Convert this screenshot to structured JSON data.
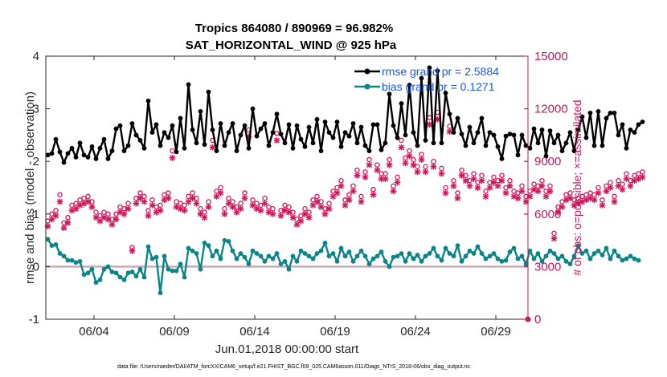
{
  "chart_data": {
    "type": "line",
    "title": "Tropics 864080 / 890969 = 96.982%",
    "subtitle": "SAT_HORIZONTAL_WIND @ 925 hPa",
    "xlabel": "Jun.01,2018 00:00:00 start",
    "ylabel": "rmse and bias (model - observation)",
    "y2label": "# of obs: o=possible; ×=assimilated",
    "ylim": [
      -1,
      4
    ],
    "y2lim": [
      0,
      15000
    ],
    "xlim": [
      1.0,
      31.0
    ],
    "x_ticks": [
      4,
      9,
      14,
      19,
      24,
      29
    ],
    "x_tick_labels": [
      "06/04",
      "06/09",
      "06/14",
      "06/19",
      "06/24",
      "06/29"
    ],
    "y_ticks": [
      "-1",
      "0",
      "1",
      "2",
      "3",
      "4"
    ],
    "y2_ticks": [
      "0",
      "3000",
      "6000",
      "9000",
      "12000",
      "15000"
    ],
    "footnote": "data file: /Users/raeder/DAI/ATM_forcXX/CAM6_setup/f.e21.FHIST_BGC.f09_025.CAM6assim.011/Diags_NTrS_2018-06/obs_diag_output.nc",
    "colors": {
      "rmse": "#000000",
      "bias": "#0b8585",
      "obs": "#d4145a",
      "zero_line": "#c9a9b9",
      "legend_text": "#1a56e8",
      "right_axis": "#c2185b"
    },
    "series": [
      {
        "name": "rmse grand pr = 2.5884",
        "axis": "left",
        "x_start": 1.125,
        "x_step": 0.25,
        "values": [
          2.12,
          2.15,
          2.42,
          2.18,
          1.98,
          2.15,
          2.25,
          2.08,
          2.35,
          2.12,
          2.08,
          2.28,
          2.05,
          2.25,
          2.42,
          2.05,
          2.2,
          2.62,
          2.68,
          2.2,
          2.3,
          2.72,
          2.5,
          2.4,
          2.25,
          3.15,
          2.55,
          2.7,
          2.3,
          2.55,
          2.45,
          2.68,
          2.18,
          2.82,
          2.25,
          3.46,
          2.6,
          2.35,
          2.95,
          2.32,
          3.32,
          2.6,
          2.2,
          2.72,
          2.3,
          2.55,
          2.72,
          2.2,
          2.5,
          2.68,
          2.25,
          3.0,
          2.48,
          2.62,
          2.72,
          2.3,
          2.55,
          2.9,
          2.52,
          2.35,
          2.7,
          2.25,
          2.68,
          2.42,
          2.28,
          2.65,
          2.35,
          2.8,
          2.2,
          2.75,
          2.55,
          2.45,
          2.75,
          2.28,
          2.55,
          2.48,
          2.72,
          2.35,
          2.65,
          2.3,
          2.2,
          2.7,
          2.7,
          2.22,
          2.35,
          3.28,
          2.68,
          2.45,
          3.1,
          2.5,
          3.45,
          2.55,
          2.3,
          3.58,
          2.4,
          3.78,
          2.35,
          3.72,
          2.35,
          3.3,
          2.9,
          2.55,
          2.82,
          2.52,
          2.3,
          2.65,
          2.35,
          2.55,
          2.82,
          2.3,
          2.55,
          2.5,
          2.28,
          2.05,
          2.48,
          2.52,
          2.5,
          2.12,
          2.5,
          2.3,
          2.25,
          2.62,
          2.35,
          2.6,
          2.1,
          2.58,
          2.35,
          2.5,
          2.2,
          2.35,
          2.55,
          2.2,
          2.6,
          2.85,
          2.45,
          2.92,
          2.3,
          2.95,
          2.3,
          2.82,
          2.92,
          2.92,
          2.5,
          2.7,
          2.25,
          2.6,
          2.55,
          2.7,
          2.75
        ]
      },
      {
        "name": "bias grand pr = 0.1271",
        "axis": "left",
        "x_start": 1.125,
        "x_step": 0.25,
        "values": [
          0.52,
          0.4,
          0.42,
          0.25,
          0.2,
          0.12,
          0.12,
          0.08,
          0.1,
          -0.15,
          -0.12,
          -0.05,
          -0.3,
          -0.25,
          -0.05,
          0.0,
          -0.1,
          -0.12,
          -0.2,
          -0.25,
          -0.12,
          -0.1,
          -0.18,
          -0.05,
          -0.2,
          0.38,
          0.15,
          0.18,
          -0.5,
          0.2,
          -0.05,
          -0.08,
          -0.08,
          0.05,
          -0.2,
          0.35,
          0.3,
          0.25,
          -0.05,
          0.45,
          0.4,
          0.2,
          0.3,
          0.15,
          0.5,
          0.48,
          0.3,
          0.15,
          0.25,
          0.18,
          0.05,
          0.3,
          0.25,
          0.2,
          0.1,
          0.2,
          0.15,
          0.25,
          0.05,
          0.1,
          -0.05,
          0.2,
          0.1,
          0.3,
          0.25,
          0.2,
          0.15,
          0.25,
          0.3,
          0.45,
          0.2,
          0.25,
          0.1,
          0.35,
          0.2,
          0.28,
          0.1,
          0.2,
          0.3,
          0.2,
          0.05,
          0.15,
          0.2,
          0.28,
          0.1,
          0.0,
          0.18,
          0.2,
          0.25,
          0.1,
          0.25,
          0.15,
          0.22,
          0.1,
          0.2,
          0.25,
          0.35,
          0.2,
          0.12,
          0.35,
          0.25,
          0.2,
          0.4,
          0.1,
          0.2,
          0.3,
          0.25,
          0.38,
          0.25,
          0.15,
          0.2,
          0.25,
          0.15,
          0.1,
          0.12,
          0.28,
          0.35,
          0.15,
          0.2,
          0.05,
          0.3,
          0.15,
          0.25,
          0.1,
          0.2,
          0.3,
          0.25,
          0.15,
          0.2,
          0.1,
          0.05,
          0.2,
          0.4,
          0.25,
          0.3,
          0.15,
          0.25,
          0.3,
          0.22,
          0.35,
          0.15,
          0.3,
          0.2,
          0.12,
          0.15,
          0.2,
          0.15,
          0.12
        ]
      },
      {
        "name": "# of obs possible (o)",
        "axis": "right",
        "x_start": 1.125,
        "x_step": 0.25,
        "values": [
          5600,
          6000,
          6200,
          7100,
          5500,
          5800,
          6500,
          6600,
          6800,
          6900,
          7000,
          6700,
          6100,
          5900,
          6100,
          6000,
          5700,
          6000,
          6400,
          6300,
          6600,
          4100,
          6900,
          7200,
          7000,
          6200,
          6800,
          6400,
          6500,
          7100,
          7200,
          9600,
          6700,
          6600,
          6500,
          7000,
          7200,
          6900,
          6300,
          6100,
          6700,
          10200,
          7300,
          7500,
          6300,
          6900,
          6700,
          6400,
          6600,
          7200,
          10800,
          6800,
          6600,
          6500,
          6900,
          6400,
          6300,
          10600,
          6200,
          6500,
          6400,
          6100,
          5700,
          5900,
          6300,
          6100,
          6800,
          7000,
          6700,
          6300,
          6600,
          7300,
          7500,
          7900,
          6800,
          7100,
          7600,
          8500,
          7000,
          8400,
          9100,
          7400,
          8800,
          8300,
          8300,
          9100,
          7600,
          8100,
          10200,
          9200,
          9600,
          9100,
          8700,
          9400,
          8700,
          11500,
          9000,
          11800,
          8600,
          7500,
          11000,
          7900,
          7200,
          8500,
          8200,
          7900,
          8300,
          7800,
          8200,
          7300,
          7800,
          8100,
          7900,
          8200,
          7500,
          7900,
          7300,
          7200,
          7600,
          7000,
          7300,
          7700,
          7600,
          7900,
          7300,
          7600,
          4900,
          6400,
          6700,
          7100,
          7200,
          6800,
          6900,
          7000,
          7100,
          7200,
          7100,
          7500,
          6800,
          7600,
          7800,
          7000,
          7900,
          7700,
          8300,
          7900,
          8200,
          8300,
          8400
        ]
      },
      {
        "name": "# of obs assimilated (×)",
        "axis": "right",
        "x_start": 1.125,
        "x_step": 0.25,
        "values": [
          5300,
          5700,
          5900,
          6700,
          5200,
          5500,
          6200,
          6300,
          6500,
          6600,
          6700,
          6400,
          5800,
          5600,
          5800,
          5700,
          5400,
          5700,
          6100,
          6000,
          6300,
          3900,
          6600,
          6900,
          6700,
          5900,
          6500,
          6100,
          6200,
          6800,
          6900,
          9200,
          6400,
          6300,
          6200,
          6700,
          6900,
          6600,
          6000,
          5800,
          6400,
          9800,
          7000,
          7200,
          6000,
          6600,
          6400,
          6100,
          6300,
          6900,
          10400,
          6500,
          6300,
          6200,
          6600,
          6100,
          6000,
          10200,
          5900,
          6200,
          6100,
          5800,
          5400,
          5600,
          6000,
          5800,
          6500,
          6700,
          6400,
          6000,
          6300,
          7000,
          7200,
          7600,
          6500,
          6800,
          7300,
          8200,
          6700,
          8100,
          8800,
          7100,
          8500,
          8000,
          8000,
          8800,
          7300,
          7800,
          9800,
          8900,
          9300,
          8800,
          8400,
          9100,
          8400,
          11100,
          8700,
          11400,
          8300,
          7200,
          10700,
          7600,
          6900,
          8200,
          7900,
          7600,
          8000,
          7500,
          7900,
          7000,
          7500,
          7800,
          7600,
          7900,
          7200,
          7600,
          7000,
          6900,
          7300,
          6700,
          7000,
          7400,
          7300,
          7600,
          7000,
          7300,
          4600,
          6100,
          6400,
          6800,
          6900,
          6500,
          6600,
          6700,
          6800,
          6900,
          6800,
          7200,
          6500,
          7300,
          7500,
          6700,
          7600,
          7400,
          8000,
          7600,
          7900,
          8000,
          8100
        ]
      }
    ]
  }
}
